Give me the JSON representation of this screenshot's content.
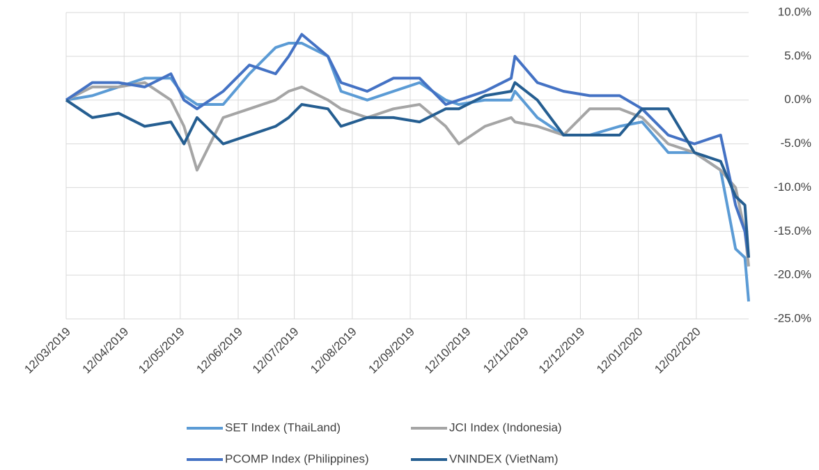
{
  "chart_data": {
    "type": "line",
    "x": [
      "2019-03-12",
      "2019-03-26",
      "2019-04-09",
      "2019-04-23",
      "2019-05-07",
      "2019-05-14",
      "2019-05-21",
      "2019-06-04",
      "2019-06-18",
      "2019-07-02",
      "2019-07-09",
      "2019-07-16",
      "2019-07-30",
      "2019-08-06",
      "2019-08-20",
      "2019-09-03",
      "2019-09-17",
      "2019-10-01",
      "2019-10-08",
      "2019-10-22",
      "2019-11-05",
      "2019-11-07",
      "2019-11-19",
      "2019-12-03",
      "2019-12-17",
      "2020-01-02",
      "2020-01-14",
      "2020-01-28",
      "2020-02-11",
      "2020-02-25",
      "2020-03-04",
      "2020-03-09",
      "2020-03-11"
    ],
    "series": [
      {
        "name": "SET Index (ThaiLand)",
        "color": "#5b9bd5",
        "values": [
          0,
          0.5,
          1.5,
          2.5,
          2.5,
          0.5,
          -0.5,
          -0.5,
          3,
          6,
          6.5,
          6.5,
          5,
          1,
          0,
          1,
          2,
          0,
          -0.5,
          0,
          0,
          1,
          -2,
          -4,
          -4,
          -3,
          -2.5,
          -6,
          -6,
          -8,
          -17,
          -18,
          -23
        ]
      },
      {
        "name": "JCI Index (Indonesia)",
        "color": "#a5a5a5",
        "values": [
          0,
          1.5,
          1.5,
          2,
          0,
          -3,
          -8,
          -2,
          -1,
          0,
          1,
          1.5,
          0,
          -1,
          -2,
          -1,
          -0.5,
          -3,
          -5,
          -3,
          -2,
          -2.5,
          -3,
          -4,
          -1,
          -1,
          -2,
          -5,
          -6,
          -8,
          -10,
          -15,
          -19
        ]
      },
      {
        "name": "PCOMP Index (Philippines)",
        "color": "#4472c4",
        "values": [
          0,
          2,
          2,
          1.5,
          3,
          0,
          -1,
          1,
          4,
          3,
          5,
          7.5,
          5,
          2,
          1,
          2.5,
          2.5,
          -0.5,
          0,
          1,
          2.5,
          5,
          2,
          1,
          0.5,
          0.5,
          -1,
          -4,
          -5,
          -4,
          -12,
          -15,
          -18
        ]
      },
      {
        "name": "VNINDEX (VietNam)",
        "color": "#255e91",
        "values": [
          0,
          -2,
          -1.5,
          -3,
          -2.5,
          -5,
          -2,
          -5,
          -4,
          -3,
          -2,
          -0.5,
          -1,
          -3,
          -2,
          -2,
          -2.5,
          -1,
          -1,
          0.5,
          1,
          2,
          0,
          -4,
          -4,
          -4,
          -1,
          -1,
          -6,
          -7,
          -11,
          -12,
          -18
        ]
      }
    ],
    "xlim": [
      "2019-03-12",
      "2020-03-11"
    ],
    "xticks": [
      {
        "value": "2019-03-12",
        "label": "12/03/2019"
      },
      {
        "value": "2019-04-12",
        "label": "12/04/2019"
      },
      {
        "value": "2019-05-12",
        "label": "12/05/2019"
      },
      {
        "value": "2019-06-12",
        "label": "12/06/2019"
      },
      {
        "value": "2019-07-12",
        "label": "12/07/2019"
      },
      {
        "value": "2019-08-12",
        "label": "12/08/2019"
      },
      {
        "value": "2019-09-12",
        "label": "12/09/2019"
      },
      {
        "value": "2019-10-12",
        "label": "12/10/2019"
      },
      {
        "value": "2019-11-12",
        "label": "12/11/2019"
      },
      {
        "value": "2019-12-12",
        "label": "12/12/2019"
      },
      {
        "value": "2020-01-12",
        "label": "12/01/2020"
      },
      {
        "value": "2020-02-12",
        "label": "12/02/2020"
      }
    ],
    "ylim": [
      -25,
      10
    ],
    "yticks": [
      {
        "value": 10,
        "label": "10.0%"
      },
      {
        "value": 5,
        "label": "5.0%"
      },
      {
        "value": 0,
        "label": "0.0%"
      },
      {
        "value": -5,
        "label": "-5.0%"
      },
      {
        "value": -10,
        "label": "-10.0%"
      },
      {
        "value": -15,
        "label": "-15.0%"
      },
      {
        "value": -20,
        "label": "-20.0%"
      },
      {
        "value": -25,
        "label": "-25.0%"
      }
    ],
    "grid": true,
    "legend": "bottom"
  }
}
